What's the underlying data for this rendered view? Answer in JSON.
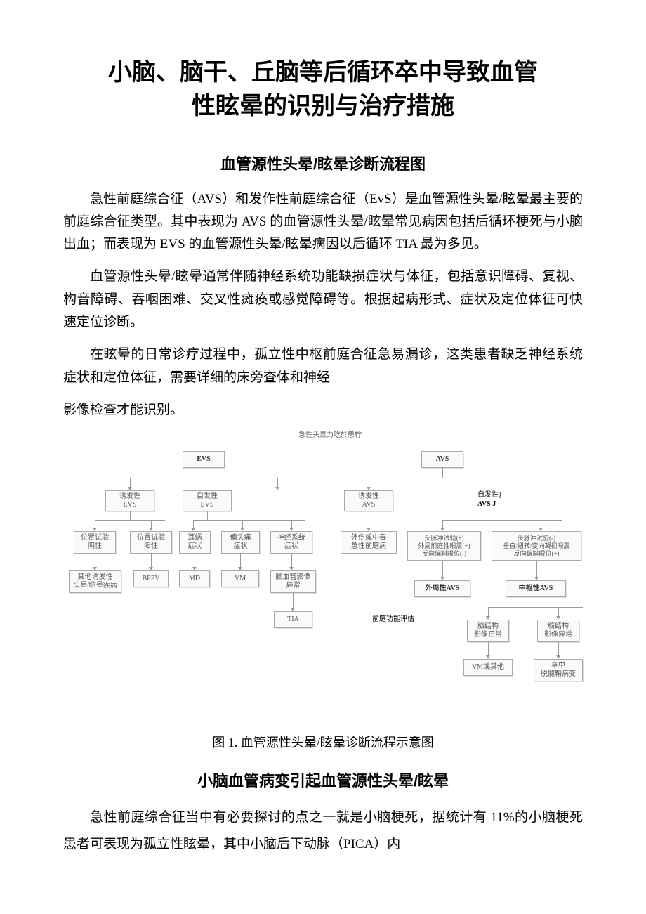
{
  "title_line1": "小脑、脑干、丘脑等后循环卒中导致血管",
  "title_line2": "性眩晕的识别与治疗措施",
  "heading1": "血管源性头晕/眩晕诊断流程图",
  "para1": "急性前庭综合征（AVS）和发作性前庭综合征（EvS）是血管源性头晕/眩晕最主要的前庭综合征类型。其中表现为 AVS 的血管源性头晕/眩晕常见病因包括后循环梗死与小脑出血；而表现为 EVS 的血管源性头晕/眩晕病因以后循环 TIA 最为多见。",
  "para2": "血管源性头晕/眩晕通常伴随神经系统功能缺损症状与体征，包括意识障碍、复视、构音障碍、吞咽困难、交叉性瘫痪或感觉障碍等。根据起病形式、症状及定位体征可快速定位诊断。",
  "para3": "在眩晕的日常诊疗过程中，孤立性中枢前庭合征急易漏诊，这类患者缺乏神经系统症状和定位体征，需要详细的床旁查体和神经",
  "para4": "影像检查才能识别。",
  "figure_caption": "图 1. 血管源性头晕/眩晕诊断流程示意图",
  "heading2": "小脑血管病变引起血管源性头晕/眩晕",
  "para5": "急性前庭综合征当中有必要探讨的点之一就是小脑梗死，据统计有 11%的小脑梗死患者可表现为孤立性眩晕，其中小脑后下动脉（PICA）内",
  "flowchart": {
    "top_label": "急性头显⼒吃於患柠",
    "side_label1": "自发性]",
    "side_label2": "AVS J",
    "mid_label": "前庭功能评估",
    "nodes": {
      "evs": "EVS",
      "avs": "AVS",
      "evs_trig": "诱发性\nEVS",
      "evs_spon": "自发性\nEVS",
      "avs_trig": "诱发性\nAVS",
      "pos_neg": "位置试验\n阴性",
      "pos_pos": "位置试验\n阳性",
      "ear": "耳蜗\n症状",
      "migraine": "偏头痛\n症状",
      "neuro": "神经系统\n症状",
      "trauma": "外伤或中毒\n急性前庭病",
      "hit_pos": "头脉冲试验(+)\n外周前庭性眼震(+)\n反向偏斜眼位(-)",
      "hit_neg": "头脉冲试验(-)\n垂直/扭转/变向凝视眼震\n反向偏斜眼位(+)",
      "other": "其他诱发性\n头晕/眩晕疾病",
      "bppv": "BPPV",
      "md": "MD",
      "vm": "VM",
      "cva": "脑血管影像\n异常",
      "periph": "外周性AVS",
      "central": "中枢性AVS",
      "tia": "TIA",
      "img_norm": "脑结构\n影像正常",
      "img_abn": "脑结构\n影像异常",
      "vm_other": "VM或其他",
      "stroke": "卒中\n脱髓鞘病变"
    }
  }
}
